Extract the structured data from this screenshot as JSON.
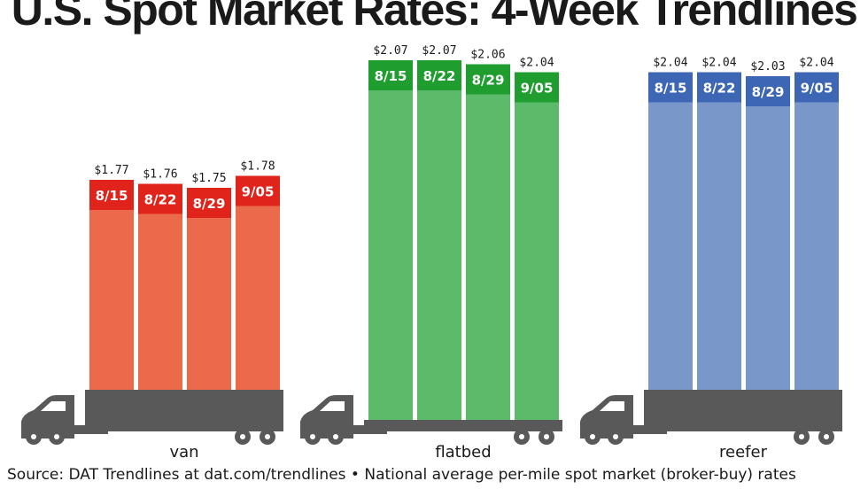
{
  "title": "U.S. Spot Market Rates: 4-Week Trendlines",
  "source": "Source: DAT Trendlines at dat.com/trendlines • National average per-mile spot market (broker-buy) rates",
  "chart_data": [
    {
      "type": "bar",
      "name": "van",
      "categories": [
        "8/15",
        "8/22",
        "8/29",
        "9/05"
      ],
      "values": [
        1.77,
        1.76,
        1.75,
        1.78
      ],
      "value_labels": [
        "$1.77",
        "$1.76",
        "$1.75",
        "$1.78"
      ],
      "colors": {
        "bar": "#ec6a4c",
        "cap": "#e0241b"
      },
      "truck": "box-trailer"
    },
    {
      "type": "bar",
      "name": "flatbed",
      "categories": [
        "8/15",
        "8/22",
        "8/29",
        "9/05"
      ],
      "values": [
        2.07,
        2.07,
        2.06,
        2.04
      ],
      "value_labels": [
        "$2.07",
        "$2.07",
        "$2.06",
        "$2.04"
      ],
      "colors": {
        "bar": "#5bbb6a",
        "cap": "#1f9d2f"
      },
      "truck": "flatbed-trailer"
    },
    {
      "type": "bar",
      "name": "reefer",
      "categories": [
        "8/15",
        "8/22",
        "8/29",
        "9/05"
      ],
      "values": [
        2.04,
        2.04,
        2.03,
        2.04
      ],
      "value_labels": [
        "$2.04",
        "$2.04",
        "$2.03",
        "$2.04"
      ],
      "colors": {
        "bar": "#7a97c9",
        "cap": "#3d67b5"
      },
      "truck": "box-trailer"
    }
  ],
  "colors": {
    "truck": "#595959",
    "label_text": "#1a1a1a",
    "cap_text": "#ffffff"
  }
}
